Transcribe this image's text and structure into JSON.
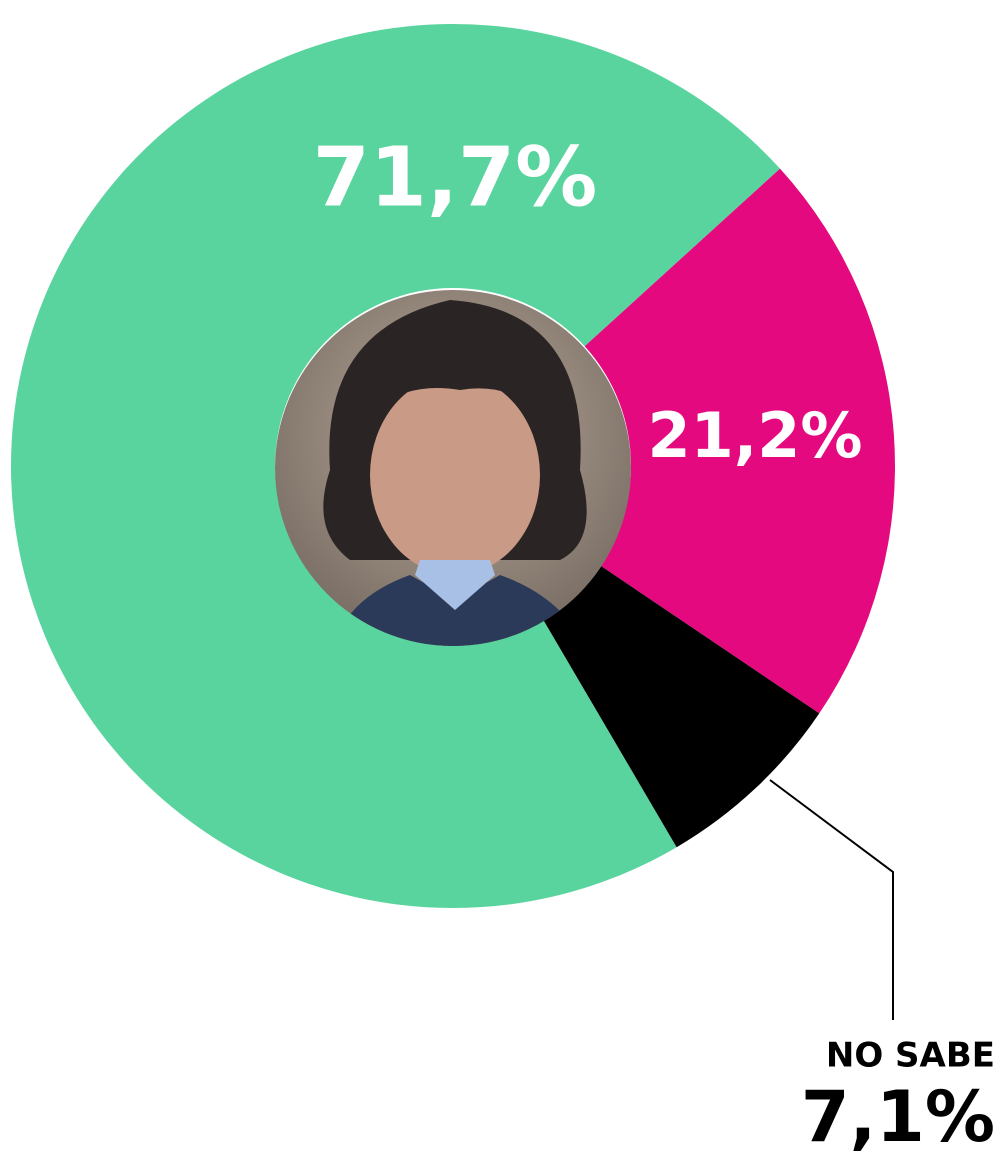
{
  "chart_data": {
    "type": "donut",
    "categories": [
      null,
      null,
      "NO SABE"
    ],
    "values": [
      71.7,
      21.2,
      7.1
    ],
    "value_labels": [
      "71,7%",
      "21,2%",
      "7,1%"
    ],
    "colors": [
      "#5ad49e",
      "#e5097f",
      "#000000"
    ]
  }
}
